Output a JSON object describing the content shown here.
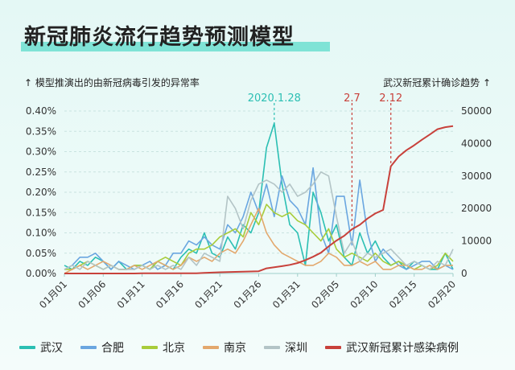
{
  "title": "新冠肺炎流行趋势预测模型",
  "left_axis_caption": "↑ 模型推演出的由新冠病毒引发的异常率",
  "right_axis_caption": "武汉新冠累计确诊趋势 ↑",
  "chart_data": {
    "type": "line",
    "x_tick_labels": [
      "01月01",
      "01月06",
      "01月11",
      "01月16",
      "01月21",
      "01月26",
      "01月31",
      "02月05",
      "02月10",
      "02月15",
      "02月20"
    ],
    "x_dates": [
      "01-01",
      "01-02",
      "01-03",
      "01-04",
      "01-05",
      "01-06",
      "01-07",
      "01-08",
      "01-09",
      "01-10",
      "01-11",
      "01-12",
      "01-13",
      "01-14",
      "01-15",
      "01-16",
      "01-17",
      "01-18",
      "01-19",
      "01-20",
      "01-21",
      "01-22",
      "01-23",
      "01-24",
      "01-25",
      "01-26",
      "01-27",
      "01-28",
      "01-29",
      "01-30",
      "01-31",
      "02-01",
      "02-02",
      "02-03",
      "02-04",
      "02-05",
      "02-06",
      "02-07",
      "02-08",
      "02-09",
      "02-10",
      "02-11",
      "02-12",
      "02-13",
      "02-14",
      "02-15",
      "02-16",
      "02-17",
      "02-18",
      "02-19",
      "02-20"
    ],
    "y_left": {
      "ticks": [
        "0.00%",
        "0.05%",
        "0.10%",
        "0.15%",
        "0.20%",
        "0.25%",
        "0.30%",
        "0.35%",
        "0.40%"
      ],
      "range": [
        0,
        0.4
      ],
      "unit": "%"
    },
    "y_right": {
      "ticks": [
        "0",
        "10000",
        "20000",
        "30000",
        "40000",
        "50000"
      ],
      "range": [
        0,
        50000
      ]
    },
    "annotations": [
      {
        "label": "2020.1.28",
        "date": "01-28",
        "color": "#2bbfb3"
      },
      {
        "label": "2.7",
        "date": "02-07",
        "color": "#c8413b"
      },
      {
        "label": "2.12",
        "date": "02-12",
        "color": "#c8413b"
      }
    ],
    "series": [
      {
        "name": "武汉",
        "axis": "left",
        "color": "#2bbfb3",
        "values": [
          0.02,
          0.01,
          0.03,
          0.02,
          0.04,
          0.03,
          0.01,
          0.03,
          0.01,
          0.02,
          0.02,
          0.01,
          0.03,
          0.02,
          0.01,
          0.04,
          0.06,
          0.05,
          0.1,
          0.05,
          0.04,
          0.09,
          0.06,
          0.12,
          0.1,
          0.15,
          0.31,
          0.37,
          0.22,
          0.12,
          0.1,
          0.02,
          0.2,
          0.15,
          0.08,
          0.12,
          0.04,
          0.02,
          0.1,
          0.05,
          0.08,
          0.04,
          0.02,
          0.03,
          0.01,
          0.03,
          0.02,
          0.01,
          0.01,
          0.05,
          0.01
        ]
      },
      {
        "name": "合肥",
        "axis": "left",
        "color": "#6aa6e0",
        "values": [
          0.01,
          0.02,
          0.04,
          0.04,
          0.05,
          0.03,
          0.01,
          0.03,
          0.02,
          0.01,
          0.02,
          0.03,
          0.01,
          0.02,
          0.05,
          0.05,
          0.08,
          0.07,
          0.09,
          0.07,
          0.06,
          0.12,
          0.1,
          0.14,
          0.2,
          0.15,
          0.22,
          0.14,
          0.24,
          0.18,
          0.16,
          0.12,
          0.26,
          0.1,
          0.05,
          0.19,
          0.19,
          0.07,
          0.23,
          0.1,
          0.03,
          0.06,
          0.04,
          0.02,
          0.01,
          0.02,
          0.03,
          0.03,
          0.01,
          0.02,
          0.01
        ]
      },
      {
        "name": "北京",
        "axis": "left",
        "color": "#a8cc3a",
        "values": [
          0.01,
          0.01,
          0.02,
          0.03,
          0.02,
          0.01,
          0.02,
          0.01,
          0.01,
          0.02,
          0.02,
          0.01,
          0.03,
          0.04,
          0.03,
          0.02,
          0.05,
          0.06,
          0.06,
          0.07,
          0.09,
          0.1,
          0.11,
          0.09,
          0.15,
          0.12,
          0.17,
          0.15,
          0.14,
          0.15,
          0.13,
          0.12,
          0.1,
          0.08,
          0.11,
          0.06,
          0.04,
          0.05,
          0.04,
          0.03,
          0.05,
          0.03,
          0.02,
          0.03,
          0.02,
          0.01,
          0.02,
          0.01,
          0.02,
          0.05,
          0.03
        ]
      },
      {
        "name": "南京",
        "axis": "left",
        "color": "#e3a86d",
        "values": [
          0.0,
          0.01,
          0.02,
          0.01,
          0.02,
          0.03,
          0.02,
          0.01,
          0.01,
          0.02,
          0.01,
          0.02,
          0.03,
          0.02,
          0.01,
          0.02,
          0.04,
          0.03,
          0.04,
          0.03,
          0.05,
          0.06,
          0.05,
          0.08,
          0.12,
          0.16,
          0.1,
          0.07,
          0.05,
          0.04,
          0.03,
          0.02,
          0.02,
          0.03,
          0.05,
          0.04,
          0.02,
          0.02,
          0.03,
          0.02,
          0.03,
          0.01,
          0.01,
          0.02,
          0.02,
          0.01,
          0.01,
          0.02,
          0.01,
          0.02,
          0.02
        ]
      },
      {
        "name": "深圳",
        "axis": "left",
        "color": "#b3c4c6",
        "values": [
          0.01,
          0.02,
          0.01,
          0.03,
          0.02,
          0.01,
          0.02,
          0.01,
          0.01,
          0.01,
          0.02,
          0.01,
          0.02,
          0.01,
          0.02,
          0.01,
          0.04,
          0.02,
          0.05,
          0.04,
          0.03,
          0.19,
          0.16,
          0.11,
          0.18,
          0.22,
          0.23,
          0.22,
          0.2,
          0.22,
          0.19,
          0.2,
          0.22,
          0.25,
          0.24,
          0.14,
          0.05,
          0.08,
          0.03,
          0.05,
          0.04,
          0.05,
          0.06,
          0.04,
          0.02,
          0.03,
          0.02,
          0.01,
          0.03,
          0.02,
          0.06
        ]
      },
      {
        "name": "武汉新冠累计感染病例",
        "axis": "right",
        "color": "#c8413b",
        "values": [
          0,
          0,
          0,
          0,
          0,
          0,
          0,
          0,
          0,
          0,
          41,
          41,
          41,
          41,
          41,
          41,
          45,
          62,
          198,
          270,
          375,
          444,
          495,
          572,
          618,
          698,
          1590,
          1905,
          2261,
          2639,
          3215,
          4109,
          5142,
          6384,
          8351,
          10117,
          11618,
          13603,
          14982,
          16902,
          18454,
          19558,
          32994,
          35991,
          37914,
          39462,
          41152,
          42752,
          44412,
          45027,
          45346
        ]
      }
    ]
  }
}
